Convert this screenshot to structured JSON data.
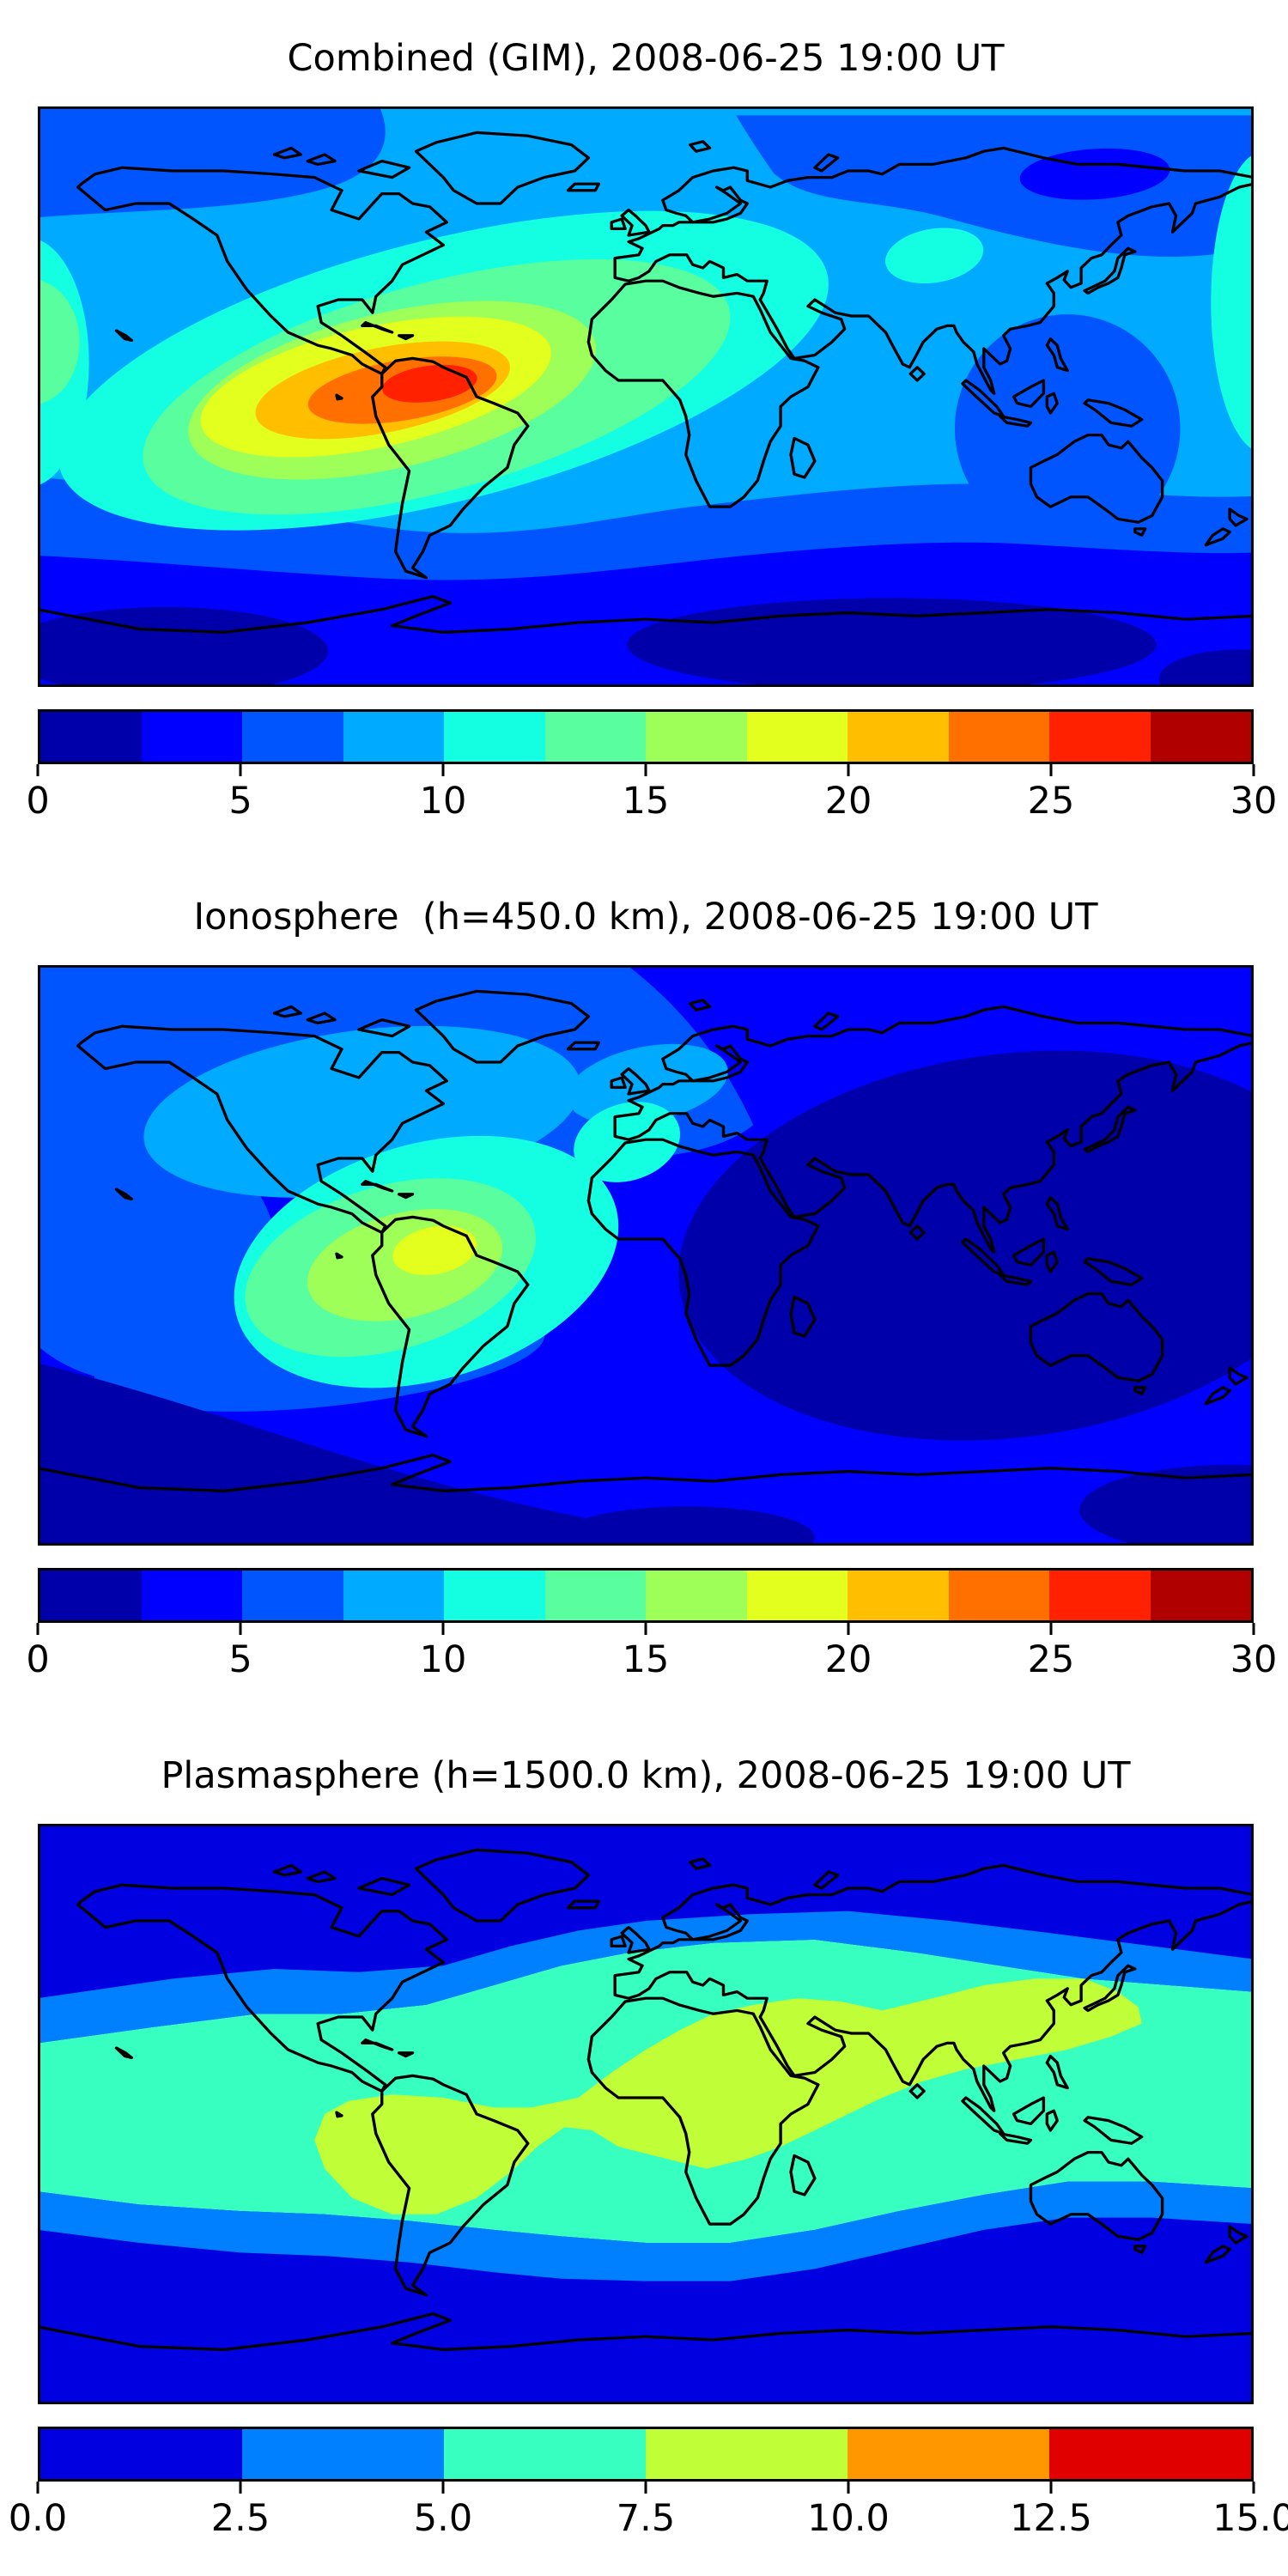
{
  "figure": {
    "background": "#ffffff",
    "n_panels": 3
  },
  "panels": [
    {
      "key": "combined",
      "title": "Combined (GIM), 2008-06-25 19:00 UT",
      "colorbar": {
        "min": 0,
        "max": 30,
        "tick_labels": [
          "0",
          "5",
          "10",
          "15",
          "20",
          "25",
          "30"
        ],
        "colors": [
          "#0000AA",
          "#0000FF",
          "#0055FF",
          "#00AAFF",
          "#14FFE2",
          "#59FF9E",
          "#9EFF59",
          "#E2FF1D",
          "#FFBE00",
          "#FF7000",
          "#FF2100",
          "#B00000"
        ]
      }
    },
    {
      "key": "ionosphere",
      "title": "Ionosphere  (h=450.0 km), 2008-06-25 19:00 UT",
      "colorbar": {
        "min": 0,
        "max": 30,
        "tick_labels": [
          "0",
          "5",
          "10",
          "15",
          "20",
          "25",
          "30"
        ],
        "colors": [
          "#0000AA",
          "#0000FF",
          "#0055FF",
          "#00AAFF",
          "#14FFE2",
          "#59FF9E",
          "#9EFF59",
          "#E2FF1D",
          "#FFBE00",
          "#FF7000",
          "#FF2100",
          "#B00000"
        ]
      }
    },
    {
      "key": "plasmasphere",
      "title": "Plasmasphere (h=1500.0 km), 2008-06-25 19:00 UT",
      "colorbar": {
        "min": 0,
        "max": 15,
        "tick_labels": [
          "0.0",
          "2.5",
          "5.0",
          "7.5",
          "10.0",
          "12.5",
          "15.0"
        ],
        "colors": [
          "#0000E0",
          "#0080FF",
          "#37FFC0",
          "#C0FF37",
          "#FF9700",
          "#E00000"
        ]
      }
    }
  ],
  "chart_data": [
    {
      "type": "heatmap",
      "variant": "filled_contour_world_map",
      "title": "Combined (GIM), 2008-06-25 19:00 UT",
      "projection": "equirectangular",
      "lon_range": [
        -180,
        180
      ],
      "lat_range": [
        -90,
        90
      ],
      "colormap": "jet",
      "n_color_bands": 12,
      "levels": [
        0,
        2.5,
        5,
        7.5,
        10,
        12.5,
        15,
        17.5,
        20,
        22.5,
        25,
        27.5,
        30
      ],
      "colorbar_ticks": [
        0,
        5,
        10,
        15,
        20,
        25,
        30
      ],
      "legend_position": "horizontal colorbar below map",
      "grid": false,
      "features": [
        {
          "region": "peak over northern South America / Caribbean",
          "lon": -63,
          "lat": 4,
          "value_band": [
            25,
            27.5
          ]
        },
        {
          "region": "dayside enhancement, tilted WSW-ENE ellipse",
          "lon_span": [
            -150,
            55
          ],
          "lat_span": [
            -40,
            47
          ],
          "value_band": [
            10,
            25
          ]
        },
        {
          "region": "cyan tongue over Europe and Middle East",
          "lon_span": [
            -10,
            60
          ],
          "lat_span": [
            15,
            45
          ],
          "value_band": [
            10,
            12.5
          ]
        },
        {
          "region": "southern high-latitude minimum band",
          "lat_span": [
            -90,
            -55
          ],
          "value_band": [
            0,
            5
          ]
        },
        {
          "region": "arctic low near 130E 70N",
          "lon": 133,
          "lat": 69,
          "value_band": [
            2.5,
            5
          ]
        },
        {
          "region": "nightside low around Australia / Indonesia",
          "lon_span": [
            95,
            160
          ],
          "lat_span": [
            20,
            -45
          ],
          "value_band": [
            5,
            7.5
          ]
        }
      ]
    },
    {
      "type": "heatmap",
      "variant": "filled_contour_world_map",
      "title": "Ionosphere  (h=450.0 km), 2008-06-25 19:00 UT",
      "projection": "equirectangular",
      "lon_range": [
        -180,
        180
      ],
      "lat_range": [
        -90,
        90
      ],
      "colormap": "jet",
      "n_color_bands": 12,
      "levels": [
        0,
        2.5,
        5,
        7.5,
        10,
        12.5,
        15,
        17.5,
        20,
        22.5,
        25,
        27.5,
        30
      ],
      "colorbar_ticks": [
        0,
        5,
        10,
        15,
        20,
        25,
        30
      ],
      "legend_position": "horizontal colorbar below map",
      "grid": false,
      "features": [
        {
          "region": "peak over northwestern South America",
          "lon": -64,
          "lat": 1,
          "value_band": [
            17.5,
            20
          ]
        },
        {
          "region": "dayside enhancement over eastern Pacific / South America / Atlantic",
          "lon_span": [
            -125,
            -5
          ],
          "lat_span": [
            -40,
            30
          ],
          "value_band": [
            10,
            17.5
          ]
        },
        {
          "region": "secondary enhancement over Iberia / NW Africa",
          "lon": -6,
          "lat": 35,
          "value_band": [
            10,
            12.5
          ]
        },
        {
          "region": "North America / North Atlantic moderate values",
          "lon_span": [
            -150,
            -25
          ],
          "lat_span": [
            22,
            68
          ],
          "value_band": [
            7.5,
            10
          ]
        },
        {
          "region": "deep nightside minimum over Asia and Indian Ocean",
          "lon_span": [
            15,
            180
          ],
          "lat_span": [
            -50,
            60
          ],
          "value_band": [
            0,
            2.5
          ]
        },
        {
          "region": "background oceans",
          "value_band": [
            2.5,
            5
          ]
        }
      ]
    },
    {
      "type": "heatmap",
      "variant": "filled_contour_world_map",
      "title": "Plasmasphere (h=1500.0 km), 2008-06-25 19:00 UT",
      "projection": "equirectangular",
      "lon_range": [
        -180,
        180
      ],
      "lat_range": [
        -90,
        90
      ],
      "colormap": "jet",
      "n_color_bands": 6,
      "levels": [
        0,
        2.5,
        5,
        7.5,
        10,
        12.5,
        15
      ],
      "colorbar_ticks": [
        0,
        2.5,
        5,
        7.5,
        10,
        12.5,
        15
      ],
      "legend_position": "horizontal colorbar below map",
      "grid": false,
      "features": [
        {
          "region": "high-latitude minimum, north and south",
          "lat_span_north": [
            50,
            90
          ],
          "lat_span_south": [
            -50,
            -90
          ],
          "value_band": [
            0,
            2.5
          ]
        },
        {
          "region": "mid-latitude transition bands",
          "value_band": [
            2.5,
            5
          ]
        },
        {
          "region": "broad equatorial belt",
          "lat_span": [
            -35,
            40
          ],
          "value_band": [
            5,
            7.5
          ]
        },
        {
          "region": "elongated maximum from South America across Africa to East Asia",
          "lon_span": [
            -98,
            147
          ],
          "lat_span": [
            -31,
            42
          ],
          "value_band": [
            7.5,
            10
          ]
        }
      ]
    }
  ]
}
